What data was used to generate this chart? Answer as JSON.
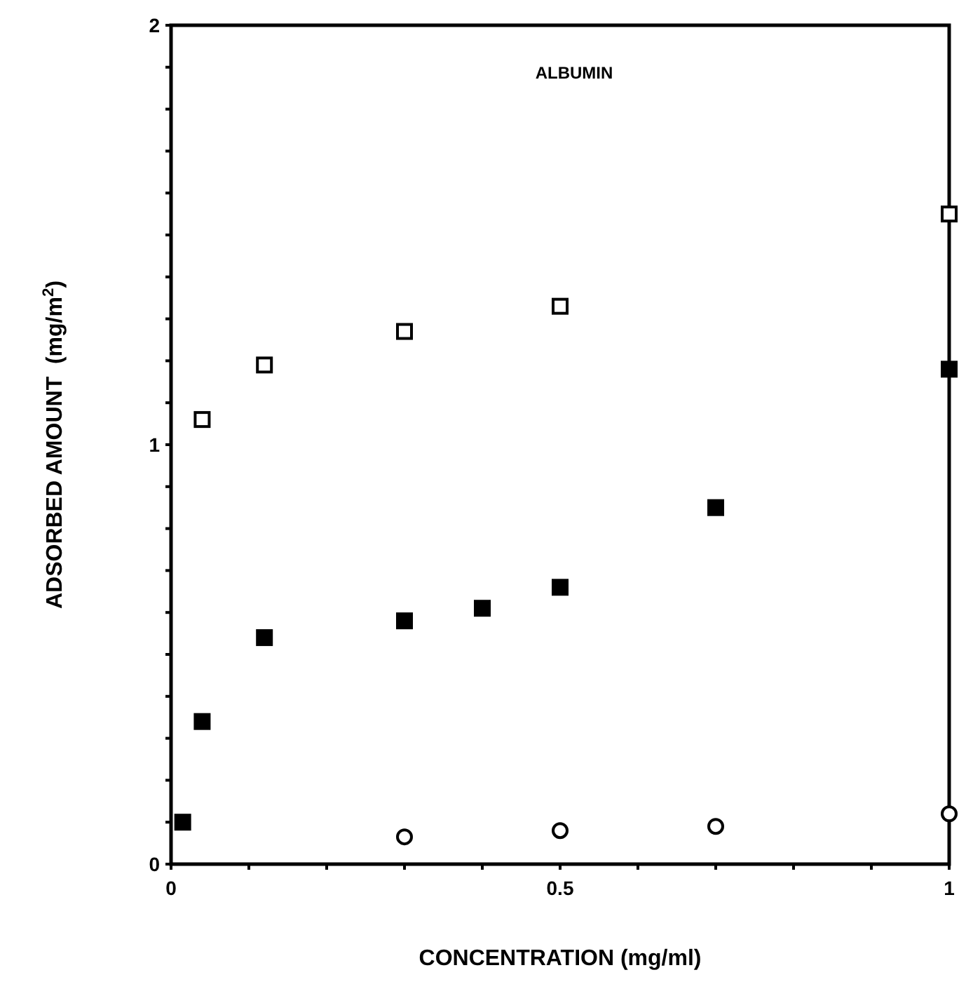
{
  "chart_data": {
    "type": "scatter",
    "title": "ALBUMIN",
    "xlabel": "CONCENTRATION  (mg/ml)",
    "ylabel": "ADSORBED AMOUNT  (mg/m$^{2}$)",
    "xlim": [
      0,
      1
    ],
    "ylim": [
      0,
      2
    ],
    "xticks": [
      0,
      {
        "value": 0.1,
        "label": null
      },
      {
        "value": 0.2,
        "label": null
      },
      {
        "value": 0.3,
        "label": null
      },
      {
        "value": 0.4,
        "label": null
      },
      0.5,
      {
        "value": 0.6,
        "label": null
      },
      {
        "value": 0.7,
        "label": null
      },
      {
        "value": 0.8,
        "label": null
      },
      {
        "value": 0.9,
        "label": null
      },
      1
    ],
    "yticks": [
      0,
      {
        "value": 0.1,
        "label": null
      },
      {
        "value": 0.2,
        "label": null
      },
      {
        "value": 0.3,
        "label": null
      },
      {
        "value": 0.4,
        "label": null
      },
      {
        "value": 0.5,
        "label": null
      },
      {
        "value": 0.6,
        "label": null
      },
      {
        "value": 0.7,
        "label": null
      },
      {
        "value": 0.8,
        "label": null
      },
      {
        "value": 0.9,
        "label": null
      },
      1,
      {
        "value": 1.1,
        "label": null
      },
      {
        "value": 1.2,
        "label": null
      },
      {
        "value": 1.3,
        "label": null
      },
      {
        "value": 1.4,
        "label": null
      },
      {
        "value": 1.5,
        "label": null
      },
      {
        "value": 1.6,
        "label": null
      },
      {
        "value": 1.7,
        "label": null
      },
      {
        "value": 1.8,
        "label": null
      },
      {
        "value": 1.9,
        "label": null
      },
      2
    ],
    "grid": false,
    "series": [
      {
        "color": "#ffffff",
        "marker": "square",
        "x": [
          0.04,
          0.12,
          0.3,
          0.5,
          1
        ],
        "values": [
          1.06,
          1.19,
          1.27,
          1.33,
          1.55
        ]
      },
      {
        "color": "#000000",
        "marker": "square",
        "x": [
          0.015,
          0.04,
          0.12,
          0.3,
          0.4,
          0.5,
          0.7,
          1
        ],
        "values": [
          0.1,
          0.34,
          0.54,
          0.58,
          0.61,
          0.66,
          0.85,
          1.18
        ]
      },
      {
        "color": "#ffffff",
        "marker": "circle",
        "x": [
          0.3,
          0.5,
          0.7,
          1
        ],
        "values": [
          0.065,
          0.08,
          0.09,
          0.12
        ]
      }
    ]
  }
}
